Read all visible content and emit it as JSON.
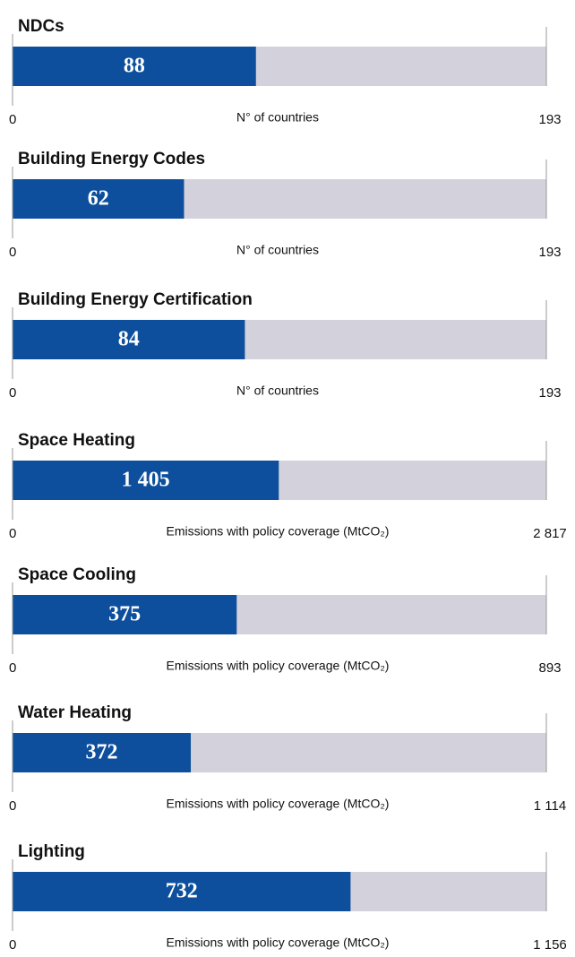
{
  "chart_data": [
    {
      "type": "bar",
      "orientation": "horizontal",
      "title": "NDCs",
      "values": [
        88
      ],
      "color": "#0d4f9c",
      "track_color": "#d3d1dc",
      "xlabel": "N° of countries",
      "xlim": [
        0,
        193
      ],
      "xticks": [
        0,
        193
      ]
    },
    {
      "type": "bar",
      "orientation": "horizontal",
      "title": "Building Energy Codes",
      "values": [
        62
      ],
      "color": "#0d4f9c",
      "track_color": "#d3d1dc",
      "xlabel": "N° of countries",
      "xlim": [
        0,
        193
      ],
      "xticks": [
        0,
        193
      ]
    },
    {
      "type": "bar",
      "orientation": "horizontal",
      "title": "Building Energy Certification",
      "values": [
        84
      ],
      "color": "#0d4f9c",
      "track_color": "#d3d1dc",
      "xlabel": "N° of countries",
      "xlim": [
        0,
        193
      ],
      "xticks": [
        0,
        193
      ]
    },
    {
      "type": "bar",
      "orientation": "horizontal",
      "title": "Space Heating",
      "values": [
        1405
      ],
      "value_labels": [
        "1 405"
      ],
      "color": "#0d4f9c",
      "track_color": "#d3d1dc",
      "xlabel": "Emissions with policy coverage (MtCO₂)",
      "xlim": [
        0,
        2817
      ],
      "xticks": [
        0,
        {
          "value": 2817,
          "label": "2 817"
        }
      ]
    },
    {
      "type": "bar",
      "orientation": "horizontal",
      "title": "Space Cooling",
      "values": [
        375
      ],
      "color": "#0d4f9c",
      "track_color": "#d3d1dc",
      "xlabel": "Emissions with policy coverage (MtCO₂)",
      "xlim": [
        0,
        893
      ],
      "xticks": [
        0,
        893
      ]
    },
    {
      "type": "bar",
      "orientation": "horizontal",
      "title": "Water Heating",
      "values": [
        372
      ],
      "color": "#0d4f9c",
      "track_color": "#d3d1dc",
      "xlabel": "Emissions with policy coverage (MtCO₂)",
      "xlim": [
        0,
        1114
      ],
      "xticks": [
        0,
        {
          "value": 1114,
          "label": "1 114"
        }
      ]
    },
    {
      "type": "bar",
      "orientation": "horizontal",
      "title": "Lighting",
      "values": [
        732
      ],
      "color": "#0d4f9c",
      "track_color": "#d3d1dc",
      "xlabel": "Emissions with policy coverage (MtCO₂)",
      "xlim": [
        0,
        1156
      ],
      "xticks": [
        0,
        {
          "value": 1156,
          "label": "1 156"
        }
      ]
    }
  ]
}
